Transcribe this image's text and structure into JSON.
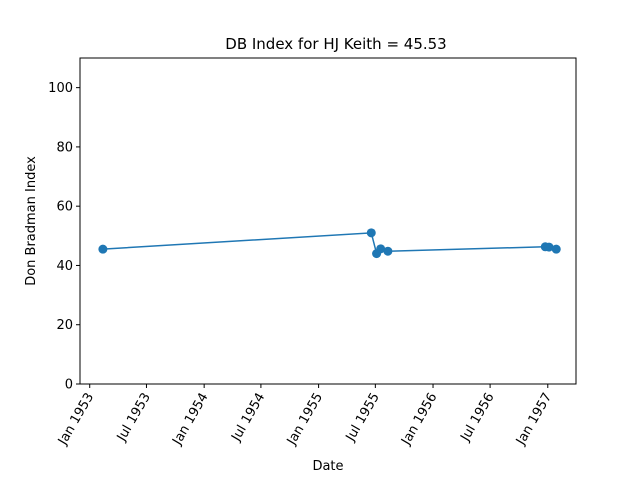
{
  "chart_data": {
    "type": "line",
    "title": "DB Index for HJ Keith = 45.53",
    "xlabel": "Date",
    "ylabel": "Don Bradman Index",
    "xlim": [
      "1952-12-01",
      "1957-04-01"
    ],
    "ylim": [
      0,
      110
    ],
    "x_tick_labels": [
      {
        "date": "1953-01-01",
        "label": "Jan 1953"
      },
      {
        "date": "1953-07-01",
        "label": "Jul 1953"
      },
      {
        "date": "1954-01-01",
        "label": "Jan 1954"
      },
      {
        "date": "1954-07-01",
        "label": "Jul 1954"
      },
      {
        "date": "1955-01-01",
        "label": "Jan 1955"
      },
      {
        "date": "1955-07-01",
        "label": "Jul 1955"
      },
      {
        "date": "1956-01-01",
        "label": "Jan 1956"
      },
      {
        "date": "1956-07-01",
        "label": "Jul 1956"
      },
      {
        "date": "1957-01-01",
        "label": "Jan 1957"
      }
    ],
    "y_ticks": [
      0,
      20,
      40,
      60,
      80,
      100
    ],
    "grid": false,
    "series": [
      {
        "color": "#1f77b4",
        "marker": "circle",
        "x": [
          "1953-02-12",
          "1955-06-18",
          "1955-07-05",
          "1955-07-18",
          "1955-08-10",
          "1956-12-24",
          "1957-01-05",
          "1957-01-28"
        ],
        "y": [
          45.5,
          51.0,
          44.0,
          45.6,
          44.8,
          46.3,
          46.2,
          45.5
        ]
      }
    ]
  }
}
